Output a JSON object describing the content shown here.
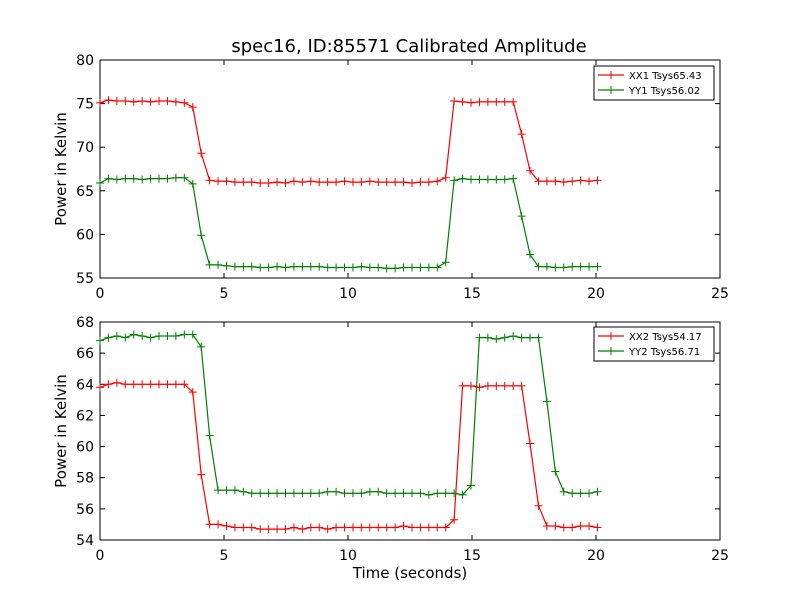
{
  "figure_title": "spec16, ID:85571 Calibrated Amplitude",
  "chart_data": [
    {
      "type": "line",
      "ylabel": "Power in Kelvin",
      "xlabel": "",
      "xlim": [
        0,
        25
      ],
      "ylim": [
        55,
        80
      ],
      "xticks": [
        0,
        5,
        10,
        15,
        20,
        25
      ],
      "yticks": [
        55,
        60,
        65,
        70,
        75,
        80
      ],
      "legend_position": "top-right",
      "x": [
        0.0,
        0.34,
        0.68,
        1.02,
        1.36,
        1.7,
        2.04,
        2.38,
        2.72,
        3.06,
        3.4,
        3.74,
        4.08,
        4.42,
        4.76,
        5.1,
        5.44,
        5.78,
        6.12,
        6.46,
        6.8,
        7.14,
        7.48,
        7.82,
        8.16,
        8.5,
        8.84,
        9.18,
        9.52,
        9.86,
        10.2,
        10.54,
        10.88,
        11.22,
        11.56,
        11.9,
        12.24,
        12.58,
        12.92,
        13.26,
        13.6,
        13.94,
        14.28,
        14.62,
        14.96,
        15.3,
        15.64,
        15.98,
        16.32,
        16.66,
        17.0,
        17.34,
        17.68,
        18.02,
        18.36,
        18.7,
        19.04,
        19.38,
        19.72,
        20.06
      ],
      "series": [
        {
          "name": "XX1 Tsys65.43",
          "color": "#ff0000",
          "values": [
            75.1,
            75.4,
            75.3,
            75.3,
            75.2,
            75.3,
            75.2,
            75.3,
            75.3,
            75.2,
            75.1,
            74.6,
            69.3,
            66.2,
            66.1,
            66.1,
            66.0,
            66.0,
            66.0,
            65.9,
            65.9,
            66.0,
            65.9,
            66.1,
            66.0,
            66.1,
            66.0,
            66.0,
            66.0,
            66.1,
            66.0,
            66.0,
            66.1,
            66.0,
            66.0,
            66.0,
            66.0,
            65.9,
            66.0,
            66.0,
            66.1,
            66.5,
            75.3,
            75.2,
            75.1,
            75.2,
            75.2,
            75.2,
            75.2,
            75.2,
            71.5,
            67.3,
            66.1,
            66.1,
            66.1,
            66.0,
            66.1,
            66.2,
            66.1,
            66.2
          ]
        },
        {
          "name": "YY1 Tsys56.02",
          "color": "#008000",
          "values": [
            65.9,
            66.4,
            66.3,
            66.4,
            66.4,
            66.3,
            66.4,
            66.4,
            66.4,
            66.5,
            66.5,
            65.8,
            59.9,
            56.5,
            56.5,
            56.4,
            56.3,
            56.3,
            56.3,
            56.2,
            56.2,
            56.3,
            56.2,
            56.3,
            56.3,
            56.3,
            56.3,
            56.2,
            56.2,
            56.2,
            56.2,
            56.3,
            56.2,
            56.2,
            56.1,
            56.1,
            56.2,
            56.2,
            56.2,
            56.2,
            56.2,
            56.8,
            66.2,
            66.4,
            66.3,
            66.3,
            66.3,
            66.3,
            66.3,
            66.4,
            62.1,
            57.7,
            56.3,
            56.3,
            56.2,
            56.2,
            56.3,
            56.3,
            56.3,
            56.3
          ]
        }
      ]
    },
    {
      "type": "line",
      "ylabel": "Power in Kelvin",
      "xlabel": "Time (seconds)",
      "xlim": [
        0,
        25
      ],
      "ylim": [
        54,
        68
      ],
      "xticks": [
        0,
        5,
        10,
        15,
        20,
        25
      ],
      "yticks": [
        54,
        56,
        58,
        60,
        62,
        64,
        66,
        68
      ],
      "legend_position": "top-right",
      "x": [
        0.0,
        0.34,
        0.68,
        1.02,
        1.36,
        1.7,
        2.04,
        2.38,
        2.72,
        3.06,
        3.4,
        3.74,
        4.08,
        4.42,
        4.76,
        5.1,
        5.44,
        5.78,
        6.12,
        6.46,
        6.8,
        7.14,
        7.48,
        7.82,
        8.16,
        8.5,
        8.84,
        9.18,
        9.52,
        9.86,
        10.2,
        10.54,
        10.88,
        11.22,
        11.56,
        11.9,
        12.24,
        12.58,
        12.92,
        13.26,
        13.6,
        13.94,
        14.28,
        14.62,
        14.96,
        15.3,
        15.64,
        15.98,
        16.32,
        16.66,
        17.0,
        17.34,
        17.68,
        18.02,
        18.36,
        18.7,
        19.04,
        19.38,
        19.72,
        20.06
      ],
      "series": [
        {
          "name": "XX2 Tsys54.17",
          "color": "#ff0000",
          "values": [
            63.8,
            64.0,
            64.1,
            64.0,
            64.0,
            64.0,
            64.0,
            64.0,
            64.0,
            64.0,
            64.0,
            63.5,
            58.2,
            55.0,
            55.0,
            54.9,
            54.8,
            54.8,
            54.8,
            54.7,
            54.7,
            54.7,
            54.7,
            54.8,
            54.7,
            54.8,
            54.8,
            54.7,
            54.8,
            54.8,
            54.8,
            54.8,
            54.8,
            54.8,
            54.8,
            54.8,
            54.9,
            54.8,
            54.8,
            54.8,
            54.8,
            54.8,
            55.3,
            63.9,
            63.9,
            63.8,
            63.9,
            63.9,
            63.9,
            63.9,
            63.9,
            60.2,
            56.2,
            54.9,
            54.9,
            54.8,
            54.8,
            54.9,
            54.9,
            54.8
          ]
        },
        {
          "name": "YY2 Tsys56.71",
          "color": "#008000",
          "values": [
            66.8,
            67.0,
            67.1,
            67.0,
            67.2,
            67.1,
            67.0,
            67.1,
            67.1,
            67.1,
            67.2,
            67.2,
            66.4,
            60.7,
            57.2,
            57.2,
            57.2,
            57.1,
            57.0,
            57.0,
            57.0,
            57.0,
            57.0,
            57.0,
            57.0,
            57.0,
            57.0,
            57.1,
            57.1,
            57.0,
            57.0,
            57.0,
            57.1,
            57.1,
            57.0,
            57.0,
            57.0,
            57.0,
            57.0,
            56.9,
            57.0,
            57.0,
            57.0,
            56.9,
            57.5,
            67.0,
            67.0,
            66.9,
            67.0,
            67.1,
            67.0,
            67.0,
            67.0,
            62.9,
            58.4,
            57.1,
            57.0,
            57.0,
            57.0,
            57.1
          ]
        }
      ]
    }
  ]
}
